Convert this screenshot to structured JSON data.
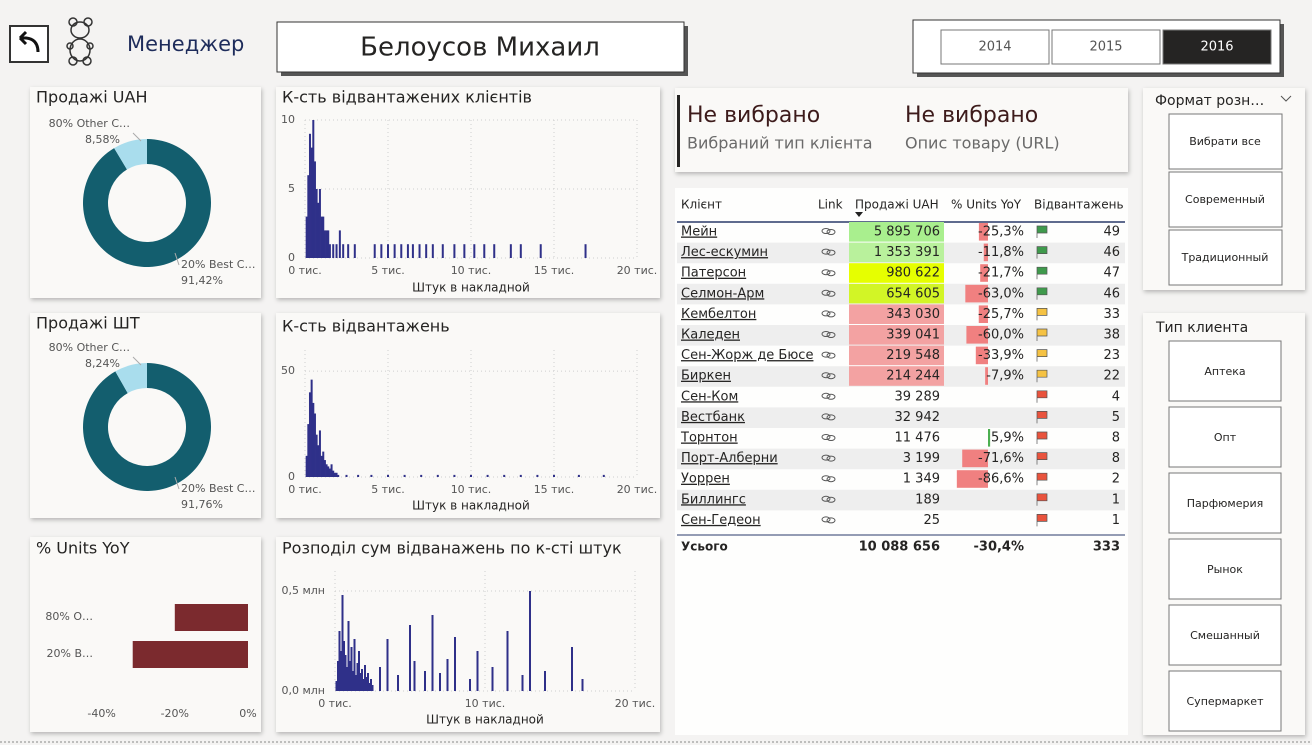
{
  "header": {
    "role": "Менеджер",
    "name": "Белоусов Михаил",
    "years": [
      "2014",
      "2015",
      "2016"
    ],
    "selected": 2
  },
  "cards": [
    {
      "value": "Не вибрано",
      "label": "Вибраний тип клієнта"
    },
    {
      "value": "Не вибрано",
      "label": "Опис товару (URL)"
    }
  ],
  "slicers": [
    {
      "title": "Формат розн…",
      "items": [
        "Вибрати все",
        "Современный",
        "Традиционный"
      ]
    },
    {
      "title": "Тип клиента",
      "items": [
        "Аптека",
        "Опт",
        "Парфюмерия",
        "Рынок",
        "Смешанный",
        "Супермаркет"
      ]
    }
  ],
  "table": {
    "columns": [
      "Клієнт",
      "Link",
      "Продажі UAH",
      "% Units YoY",
      "Відвантажень"
    ],
    "rows": [
      {
        "client": "Мейн",
        "sales": "5 895 706",
        "sales_color": "#a9ef8e",
        "yoy": -25.3,
        "yoy_label": "-25,3%",
        "shipments": 49,
        "flag": "#3f9a4c"
      },
      {
        "client": "Лес-ескумин",
        "sales": "1 353 391",
        "sales_color": "#b9f19c",
        "yoy": -11.8,
        "yoy_label": "-11,8%",
        "shipments": 46,
        "flag": "#3f9a4c"
      },
      {
        "client": "Патерсон",
        "sales": "980 622",
        "sales_color": "#e6ff00",
        "yoy": -21.7,
        "yoy_label": "-21,7%",
        "shipments": 47,
        "flag": "#3f9a4c"
      },
      {
        "client": "Селмон-Арм",
        "sales": "654 605",
        "sales_color": "#d2f526",
        "yoy": -63.0,
        "yoy_label": "-63,0%",
        "shipments": 46,
        "flag": "#3f9a4c"
      },
      {
        "client": "Кембелтон",
        "sales": "343 030",
        "sales_color": "#f3a2a2",
        "yoy": -25.7,
        "yoy_label": "-25,7%",
        "shipments": 33,
        "flag": "#f5c243"
      },
      {
        "client": "Каледен",
        "sales": "339 041",
        "sales_color": "#f3a2a2",
        "yoy": -60.0,
        "yoy_label": "-60,0%",
        "shipments": 38,
        "flag": "#f5c243"
      },
      {
        "client": "Сен-Жорж де Бюсе",
        "sales": "219 548",
        "sales_color": "#f3a2a2",
        "yoy": -33.9,
        "yoy_label": "-33,9%",
        "shipments": 23,
        "flag": "#f5c243"
      },
      {
        "client": "Биркен",
        "sales": "214 244",
        "sales_color": "#f3a2a2",
        "yoy": -7.9,
        "yoy_label": "-7,9%",
        "shipments": 22,
        "flag": "#f5c243"
      },
      {
        "client": "Сен-Ком",
        "sales": "39 289",
        "sales_color": null,
        "yoy": null,
        "yoy_label": null,
        "shipments": 4,
        "flag": "#e9533d"
      },
      {
        "client": "Вестбанк",
        "sales": "32 942",
        "sales_color": null,
        "yoy": null,
        "yoy_label": null,
        "shipments": 5,
        "flag": "#e9533d"
      },
      {
        "client": "Торнтон",
        "sales": "11 476",
        "sales_color": null,
        "yoy": 5.9,
        "yoy_label": "5,9%",
        "shipments": 8,
        "flag": "#e9533d"
      },
      {
        "client": "Порт-Алберни",
        "sales": "3 199",
        "sales_color": null,
        "yoy": -71.6,
        "yoy_label": "-71,6%",
        "shipments": 8,
        "flag": "#e9533d"
      },
      {
        "client": "Уоррен",
        "sales": "1 349",
        "sales_color": null,
        "yoy": -86.6,
        "yoy_label": "-86,6%",
        "shipments": 2,
        "flag": "#e9533d"
      },
      {
        "client": "Биллингс",
        "sales": "189",
        "sales_color": null,
        "yoy": null,
        "yoy_label": null,
        "shipments": 1,
        "flag": "#e9533d"
      },
      {
        "client": "Сен-Гедеон",
        "sales": "25",
        "sales_color": null,
        "yoy": null,
        "yoy_label": null,
        "shipments": 1,
        "flag": "#e9533d"
      }
    ],
    "total": {
      "label": "Усього",
      "sales": "10 088 656",
      "yoy": "-30,4%",
      "shipments": 333
    }
  },
  "chart_data": [
    {
      "type": "donut",
      "title": "Продажі UAH",
      "categories": [
        "20% Best C…",
        "80% Other C…"
      ],
      "values": [
        91.42,
        8.58
      ],
      "value_labels": [
        "91,42%",
        "8,58%"
      ],
      "colors": [
        "#135e6e",
        "#a9dded"
      ]
    },
    {
      "type": "donut",
      "title": "Продажі ШТ",
      "categories": [
        "20% Best C…",
        "80% Other C…"
      ],
      "values": [
        91.76,
        8.24
      ],
      "value_labels": [
        "91,76%",
        "8,24%"
      ],
      "colors": [
        "#135e6e",
        "#a9dded"
      ]
    },
    {
      "type": "hbar",
      "title": "% Units YoY",
      "categories": [
        "80% O…",
        "20% B…"
      ],
      "values": [
        -20,
        -31.5
      ],
      "color": "#7b2a2e",
      "xlim": [
        -50,
        0
      ],
      "xticks": [
        {
          "value": -40,
          "label": "-40%"
        },
        {
          "value": -20,
          "label": "-20%"
        },
        {
          "value": 0,
          "label": "0%"
        }
      ]
    },
    {
      "type": "bar",
      "title": "К-сть відвантажених клієнтів",
      "x_label": "Штук в накладной",
      "color": "#2f3089",
      "grid": true,
      "x": [
        100,
        200,
        300,
        400,
        500,
        600,
        700,
        800,
        900,
        1000,
        1100,
        1200,
        1300,
        1400,
        1500,
        1700,
        1900,
        2100,
        2300,
        2600,
        3000,
        4200,
        4600,
        5000,
        5400,
        5800,
        6200,
        6500,
        6900,
        7300,
        7700,
        8300,
        9000,
        9600,
        10200,
        10800,
        11400,
        12400,
        13000,
        14200,
        16900
      ],
      "values": [
        3,
        6,
        9,
        8,
        10,
        7,
        5,
        4,
        5,
        3,
        3,
        2,
        2,
        2,
        1,
        1,
        1,
        2,
        1,
        1,
        1,
        1,
        1,
        1,
        1,
        1,
        1,
        1,
        1,
        1,
        1,
        1,
        1,
        1,
        1,
        1,
        1,
        1,
        1,
        1,
        1
      ],
      "xlim": [
        0,
        20000
      ],
      "xticks": [
        {
          "value": 0,
          "label": "0 тис."
        },
        {
          "value": 5000,
          "label": "5 тис."
        },
        {
          "value": 10000,
          "label": "10 тис."
        },
        {
          "value": 15000,
          "label": "15 тис."
        },
        {
          "value": 20000,
          "label": "20 тис."
        }
      ],
      "ylim": [
        0,
        10
      ],
      "yticks": [
        0,
        5,
        10
      ]
    },
    {
      "type": "bar",
      "title": "К-сть відвантажень",
      "x_label": "Штук в накладной",
      "color": "#2f3089",
      "grid": true,
      "x": [
        100,
        200,
        300,
        400,
        500,
        600,
        700,
        800,
        900,
        1000,
        1100,
        1200,
        1300,
        1400,
        1500,
        1600,
        1700,
        1800,
        1900,
        2000,
        2500,
        3200,
        4000,
        5000,
        6000,
        7000,
        8000,
        9000,
        10000,
        11000,
        12000,
        13000,
        14000,
        15000,
        16500,
        18000
      ],
      "values": [
        10,
        25,
        40,
        46,
        35,
        30,
        20,
        15,
        22,
        10,
        12,
        8,
        6,
        5,
        4,
        6,
        3,
        2,
        2,
        1,
        1,
        1,
        1,
        1,
        1,
        1,
        1,
        1,
        1,
        1,
        1,
        1,
        1,
        1,
        1,
        1
      ],
      "xlim": [
        0,
        20000
      ],
      "xticks": [
        {
          "value": 0,
          "label": "0 тис."
        },
        {
          "value": 5000,
          "label": "5 тис."
        },
        {
          "value": 10000,
          "label": "10 тис."
        },
        {
          "value": 15000,
          "label": "15 тис."
        },
        {
          "value": 20000,
          "label": "20 тис."
        }
      ],
      "ylim": [
        0,
        60
      ],
      "yticks": [
        0,
        50
      ]
    },
    {
      "type": "bar",
      "title": "Розподіл сум відванажень по к-сті штук",
      "x_label": "Штук в накладной",
      "color": "#2f3089",
      "grid": true,
      "x": [
        100,
        200,
        300,
        400,
        500,
        600,
        700,
        800,
        900,
        1000,
        1100,
        1200,
        1300,
        1400,
        1500,
        1600,
        1700,
        1800,
        1900,
        2000,
        2100,
        2200,
        2300,
        2400,
        2500,
        3000,
        3500,
        4200,
        5000,
        5300,
        6000,
        6500,
        7000,
        7500,
        8000,
        9000,
        9500,
        10500,
        11500,
        12500,
        13000,
        14000,
        15800,
        16500
      ],
      "values": [
        50000,
        150000,
        300000,
        200000,
        480000,
        250000,
        180000,
        120000,
        350000,
        150000,
        220000,
        100000,
        260000,
        80000,
        140000,
        200000,
        90000,
        110000,
        60000,
        130000,
        70000,
        90000,
        40000,
        60000,
        30000,
        120000,
        260000,
        80000,
        330000,
        150000,
        100000,
        380000,
        90000,
        160000,
        270000,
        60000,
        200000,
        120000,
        300000,
        80000,
        500000,
        100000,
        220000,
        60000
      ],
      "xlim": [
        0,
        20000
      ],
      "xticks": [
        {
          "value": 0,
          "label": "0 тис."
        },
        {
          "value": 10000,
          "label": "10 тис."
        },
        {
          "value": 20000,
          "label": "20 тис."
        }
      ],
      "ylim": [
        0,
        600000
      ],
      "yticks": [
        {
          "value": 0,
          "label": "0,0 млн"
        },
        {
          "value": 500000,
          "label": "0,5 млн"
        }
      ]
    }
  ]
}
